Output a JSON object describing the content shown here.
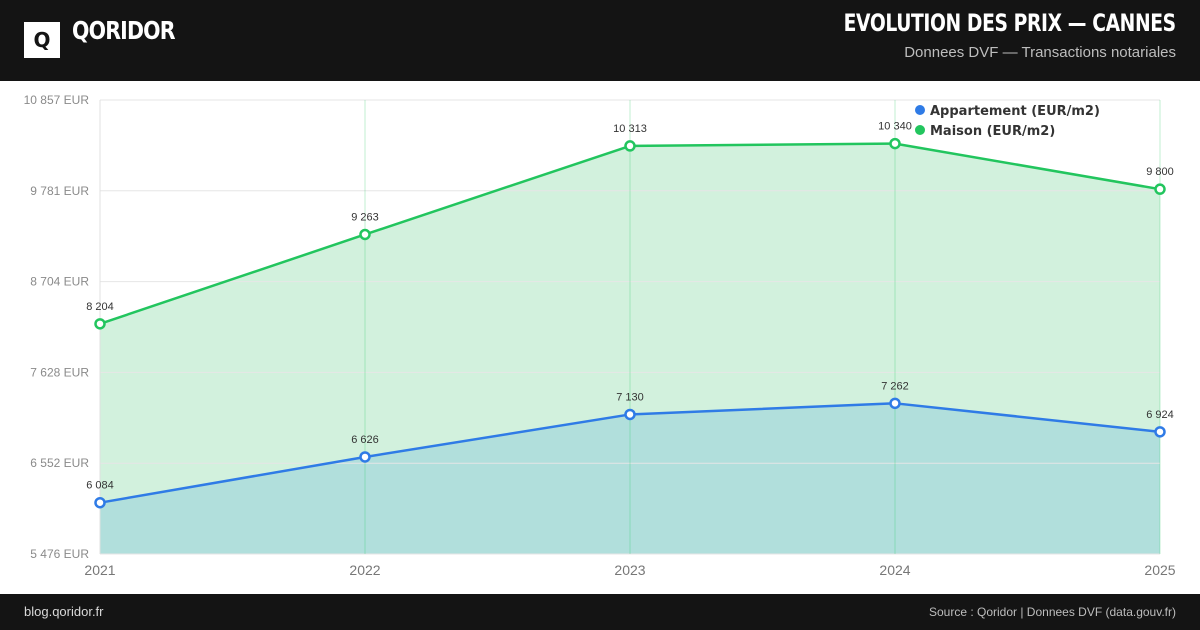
{
  "header": {
    "brand": "QORIDOR",
    "logo_letter": "Q",
    "title": "EVOLUTION DES PRIX — CANNES",
    "subtitle": "Donnees DVF — Transactions notariales"
  },
  "footer": {
    "left": "blog.qoridor.fr",
    "right": "Source : Qoridor | Donnees DVF (data.gouv.fr)"
  },
  "chart_data": {
    "type": "area",
    "title": "EVOLUTION DES PRIX — CANNES",
    "x": [
      "2021",
      "2022",
      "2023",
      "2024",
      "2025"
    ],
    "ylim": [
      5476,
      10857
    ],
    "yticks": [
      5476,
      6552,
      7628,
      8704,
      9781,
      10857
    ],
    "ytick_labels": [
      "5 476 EUR",
      "6 552 EUR",
      "7 628 EUR",
      "8 704 EUR",
      "9 781 EUR",
      "10 857 EUR"
    ],
    "grid": true,
    "legend_position": "top-right",
    "series": [
      {
        "name": "Appartement (EUR/m2)",
        "color": "#2f7be6",
        "fill": "#b1dfdc",
        "values": [
          6084,
          6626,
          7130,
          7262,
          6924
        ],
        "labels": [
          "6 084",
          "6 626",
          "7 130",
          "7 262",
          "6 924"
        ]
      },
      {
        "name": "Maison (EUR/m2)",
        "color": "#22c55e",
        "fill": "#d2f1dd",
        "values": [
          8204,
          9263,
          10313,
          10340,
          9800
        ],
        "labels": [
          "8 204",
          "9 263",
          "10 313",
          "10 340",
          "9 800"
        ]
      }
    ]
  }
}
